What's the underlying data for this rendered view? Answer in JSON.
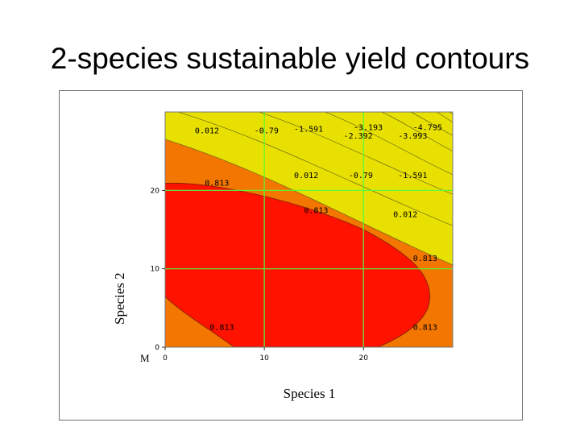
{
  "slide": {
    "title": "2-species sustainable yield contours"
  },
  "chart_data": {
    "type": "contour",
    "title": "2-species sustainable yield contours",
    "xlabel": "Species 1",
    "ylabel": "Species 2",
    "corner_label": "M",
    "xlim": [
      0,
      29
    ],
    "ylim": [
      0,
      30
    ],
    "x_ticks": [
      "0",
      "10",
      "20"
    ],
    "y_ticks": [
      "0",
      "10",
      "20"
    ],
    "grid": "on",
    "grid_color": "#4dff3c",
    "levels": [
      {
        "value": "0.813",
        "color": "#ff1200"
      },
      {
        "value": "0.012",
        "color": "#f37600"
      },
      {
        "value": "-0.79",
        "color": "#e8e000"
      },
      {
        "value": "-1.591",
        "color": "#aee800"
      },
      {
        "value": "-2.392",
        "color": "#5fd000"
      },
      {
        "value": "-3.193",
        "color": "#10b030"
      },
      {
        "value": "-3.993",
        "color": "#089890"
      },
      {
        "value": "-4.795",
        "color": "#1070c8"
      },
      {
        "value": "",
        "color": "#3838a8"
      },
      {
        "value": "",
        "color": "#582890"
      }
    ],
    "contour_labels": [
      {
        "text": "0.012",
        "x": 3.0,
        "y": 27.3
      },
      {
        "text": "-0.79",
        "x": 9.0,
        "y": 27.3
      },
      {
        "text": "-1.591",
        "x": 13.0,
        "y": 27.5
      },
      {
        "text": "-2.392",
        "x": 18.0,
        "y": 26.6
      },
      {
        "text": "-3.193",
        "x": 19.0,
        "y": 27.7
      },
      {
        "text": "-3.993",
        "x": 23.5,
        "y": 26.6
      },
      {
        "text": "-4.795",
        "x": 25.0,
        "y": 27.7
      },
      {
        "text": "0.813",
        "x": 4.0,
        "y": 20.6
      },
      {
        "text": "0.012",
        "x": 13.0,
        "y": 21.6
      },
      {
        "text": "-0.79",
        "x": 18.5,
        "y": 21.6
      },
      {
        "text": "-1.591",
        "x": 23.5,
        "y": 21.6
      },
      {
        "text": "0.813",
        "x": 14.0,
        "y": 17.1
      },
      {
        "text": "0.012",
        "x": 23.0,
        "y": 16.6
      },
      {
        "text": "0.813",
        "x": 25.0,
        "y": 11.0
      },
      {
        "text": "0.813",
        "x": 4.5,
        "y": 2.2
      },
      {
        "text": "0.813",
        "x": 25.0,
        "y": 2.2
      }
    ]
  }
}
